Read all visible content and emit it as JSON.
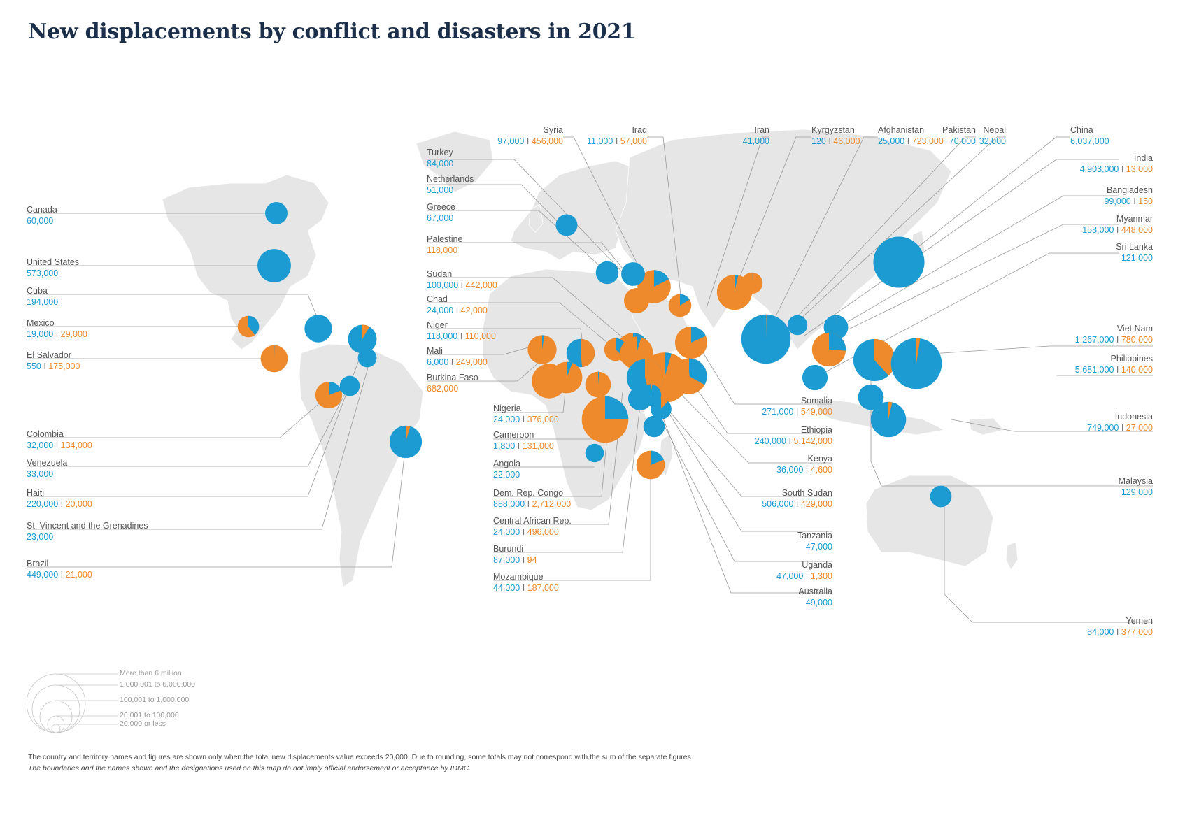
{
  "title": "New displacements by conflict and disasters in 2021",
  "colors": {
    "conflict": "#1b9bd1",
    "disaster": "#ef8a2c",
    "land": "#e6e6e6",
    "leader": "#9a9a9a",
    "title": "#1c2f4a"
  },
  "labels": [
    {
      "name": "Canada",
      "c": "60,000",
      "d": ""
    },
    {
      "name": "United States",
      "c": "573,000",
      "d": ""
    },
    {
      "name": "Cuba",
      "c": "194,000",
      "d": ""
    },
    {
      "name": "Mexico",
      "c": "19,000",
      "d": "29,000"
    },
    {
      "name": "El Salvador",
      "c": "550",
      "d": "175,000"
    },
    {
      "name": "Colombia",
      "c": "32,000",
      "d": "134,000"
    },
    {
      "name": "Venezuela",
      "c": "33,000",
      "d": ""
    },
    {
      "name": "Haiti",
      "c": "220,000",
      "d": "20,000"
    },
    {
      "name": "St. Vincent and the Grenadines",
      "c": "23,000",
      "d": ""
    },
    {
      "name": "Brazil",
      "c": "449,000",
      "d": "21,000"
    },
    {
      "name": "Syria",
      "c": "97,000",
      "d": "456,000"
    },
    {
      "name": "Iraq",
      "c": "11,000",
      "d": "57,000"
    },
    {
      "name": "Turkey",
      "c": "84,000",
      "d": ""
    },
    {
      "name": "Netherlands",
      "c": "51,000",
      "d": ""
    },
    {
      "name": "Greece",
      "c": "67,000",
      "d": ""
    },
    {
      "name": "Palestine",
      "c": "",
      "d": "118,000"
    },
    {
      "name": "Sudan",
      "c": "100,000",
      "d": "442,000"
    },
    {
      "name": "Chad",
      "c": "24,000",
      "d": "42,000"
    },
    {
      "name": "Niger",
      "c": "118,000",
      "d": "110,000"
    },
    {
      "name": "Mali",
      "c": "6,000",
      "d": "249,000"
    },
    {
      "name": "Burkina Faso",
      "c": "",
      "d": "682,000"
    },
    {
      "name": "Nigeria",
      "c": "24,000",
      "d": "376,000"
    },
    {
      "name": "Cameroon",
      "c": "1,800",
      "d": "131,000"
    },
    {
      "name": "Angola",
      "c": "22,000",
      "d": ""
    },
    {
      "name": "Dem. Rep. Congo",
      "c": "888,000",
      "d": "2,712,000"
    },
    {
      "name": "Central African Rep.",
      "c": "24,000",
      "d": "496,000"
    },
    {
      "name": "Burundi",
      "c": "87,000",
      "d": "94"
    },
    {
      "name": "Mozambique",
      "c": "44,000",
      "d": "187,000"
    },
    {
      "name": "Iran",
      "c": "41,000",
      "d": ""
    },
    {
      "name": "Kyrgyzstan",
      "c": "120",
      "d": "46,000"
    },
    {
      "name": "Afghanistan",
      "c": "25,000",
      "d": "723,000"
    },
    {
      "name": "Pakistan",
      "c": "70,000",
      "d": ""
    },
    {
      "name": "Nepal",
      "c": "32,000",
      "d": ""
    },
    {
      "name": "China",
      "c": "6,037,000",
      "d": ""
    },
    {
      "name": "India",
      "c": "4,903,000",
      "d": "13,000"
    },
    {
      "name": "Bangladesh",
      "c": "99,000",
      "d": "150"
    },
    {
      "name": "Myanmar",
      "c": "158,000",
      "d": "448,000"
    },
    {
      "name": "Sri Lanka",
      "c": "121,000",
      "d": ""
    },
    {
      "name": "Viet Nam",
      "c": "1,267,000",
      "d": "780,000"
    },
    {
      "name": "Philippines",
      "c": "5,681,000",
      "d": "140,000"
    },
    {
      "name": "Indonesia",
      "c": "749,000",
      "d": "27,000"
    },
    {
      "name": "Malaysia",
      "c": "129,000",
      "d": ""
    },
    {
      "name": "Yemen",
      "c": "84,000",
      "d": "377,000"
    },
    {
      "name": "Somalia",
      "c": "271,000",
      "d": "549,000"
    },
    {
      "name": "Ethiopia",
      "c": "240,000",
      "d": "5,142,000"
    },
    {
      "name": "Kenya",
      "c": "36,000",
      "d": "4,600"
    },
    {
      "name": "South Sudan",
      "c": "506,000",
      "d": "429,000"
    },
    {
      "name": "Tanzania",
      "c": "47,000",
      "d": ""
    },
    {
      "name": "Uganda",
      "c": "47,000",
      "d": "1,300"
    },
    {
      "name": "Australia",
      "c": "49,000",
      "d": ""
    }
  ],
  "legend": [
    "More than 6 million",
    "1,000,001 to 6,000,000",
    "100,001 to 1,000,000",
    "20,001 to 100,000",
    "20,000 or less"
  ],
  "footnote": {
    "line1": "The country and territory names and figures are shown only when the total new displacements value exceeds 20,000. Due to rounding, some totals may not correspond with the sum of the separate figures.",
    "line2": "The boundaries and the names shown and the designations used on this map do not imply official endorsement or acceptance by IDMC."
  }
}
